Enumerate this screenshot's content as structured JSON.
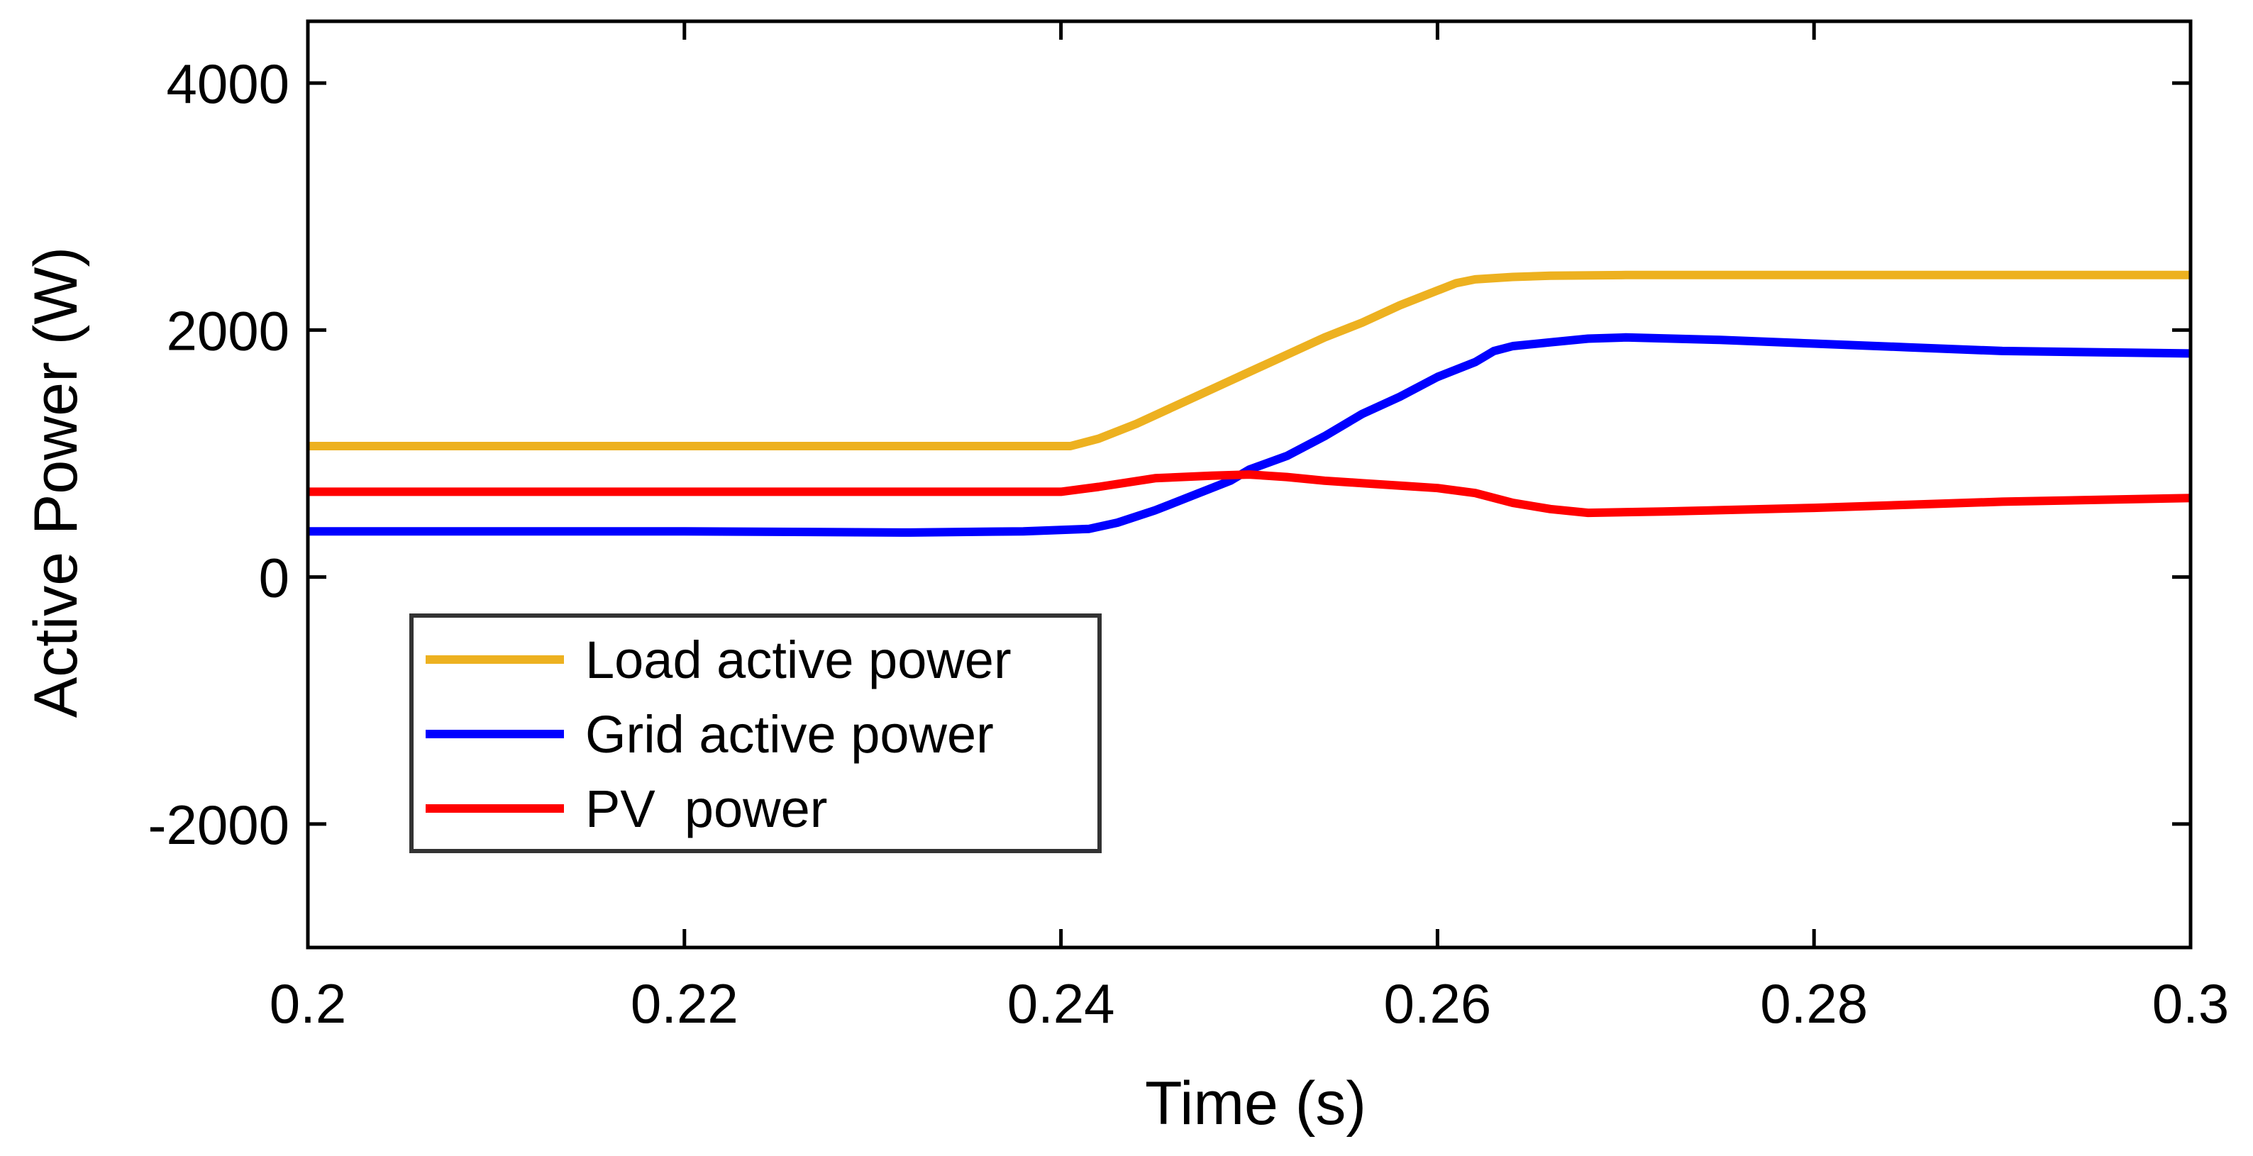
{
  "chart_data": {
    "type": "line",
    "title": "",
    "xlabel": "Time (s)",
    "ylabel": "Active Power (W)",
    "xlim": [
      0.2,
      0.3
    ],
    "ylim": [
      -3000,
      4500
    ],
    "xticks": [
      0.2,
      0.22,
      0.24,
      0.26,
      0.28,
      0.3
    ],
    "xtick_labels": [
      "0.2",
      "0.22",
      "0.24",
      "0.26",
      "0.28",
      "0.3"
    ],
    "yticks": [
      -2000,
      0,
      2000,
      4000
    ],
    "ytick_labels": [
      "-2000",
      "0",
      "2000",
      "4000"
    ],
    "grid": false,
    "legend_position": "bottom-left",
    "series": [
      {
        "name": "Load active power",
        "color": "#EDB120",
        "x": [
          0.2,
          0.22,
          0.2405,
          0.242,
          0.244,
          0.246,
          0.248,
          0.25,
          0.252,
          0.254,
          0.256,
          0.258,
          0.26,
          0.261,
          0.262,
          0.264,
          0.266,
          0.27,
          0.28,
          0.29,
          0.3
        ],
        "y": [
          1060,
          1060,
          1060,
          1120,
          1240,
          1380,
          1520,
          1660,
          1800,
          1940,
          2060,
          2200,
          2320,
          2380,
          2410,
          2430,
          2440,
          2445,
          2445,
          2445,
          2445
        ]
      },
      {
        "name": "Grid active power",
        "color": "#0000FF",
        "x": [
          0.2,
          0.22,
          0.232,
          0.238,
          0.2415,
          0.243,
          0.245,
          0.247,
          0.249,
          0.25,
          0.252,
          0.254,
          0.256,
          0.258,
          0.26,
          0.262,
          0.263,
          0.264,
          0.266,
          0.268,
          0.27,
          0.275,
          0.28,
          0.285,
          0.29,
          0.3
        ],
        "y": [
          370,
          370,
          360,
          370,
          390,
          440,
          540,
          660,
          780,
          870,
          980,
          1140,
          1320,
          1460,
          1620,
          1740,
          1830,
          1870,
          1900,
          1930,
          1940,
          1920,
          1890,
          1860,
          1830,
          1810
        ]
      },
      {
        "name": "PV  power",
        "color": "#FF0000",
        "x": [
          0.2,
          0.22,
          0.24,
          0.242,
          0.245,
          0.248,
          0.25,
          0.252,
          0.254,
          0.256,
          0.258,
          0.26,
          0.262,
          0.264,
          0.266,
          0.268,
          0.272,
          0.28,
          0.29,
          0.3
        ],
        "y": [
          690,
          690,
          690,
          730,
          800,
          820,
          830,
          810,
          780,
          760,
          740,
          720,
          680,
          600,
          550,
          520,
          530,
          560,
          610,
          640
        ]
      }
    ]
  }
}
